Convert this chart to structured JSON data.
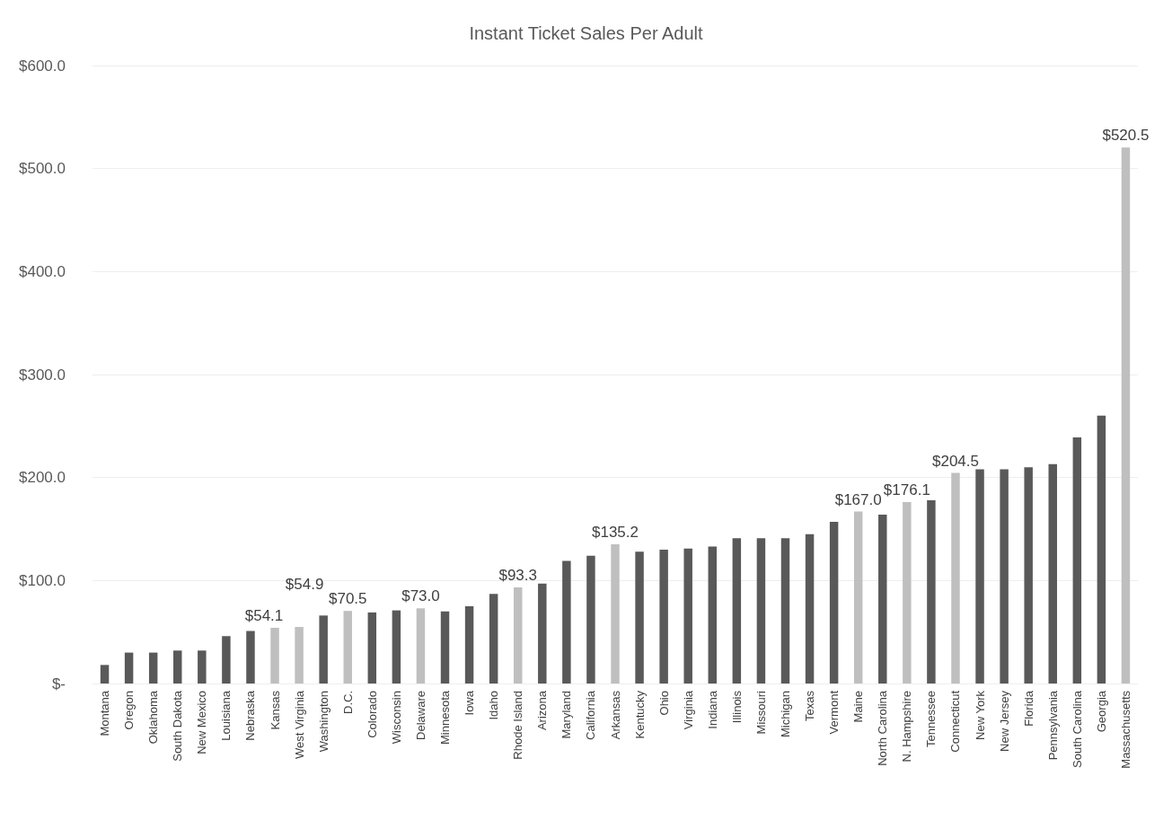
{
  "chart_data": {
    "type": "bar",
    "title": "Instant Ticket Sales Per Adult",
    "categories": [
      "Montana",
      "Oregon",
      "Oklahoma",
      "South Dakota",
      "New Mexico",
      "Louisiana",
      "Nebraska",
      "Kansas",
      "West Virginia",
      "Washington",
      "D.C.",
      "Colorado",
      "Wisconsin",
      "Delaware",
      "Minnesota",
      "Iowa",
      "Idaho",
      "Rhode Island",
      "Arizona",
      "Maryland",
      "California",
      "Arkansas",
      "Kentucky",
      "Ohio",
      "Virginia",
      "Indiana",
      "Illinois",
      "Missouri",
      "Michigan",
      "Texas",
      "Vermont",
      "Maine",
      "North Carolina",
      "N. Hampshire",
      "Tennessee",
      "Connecticut",
      "New York",
      "New Jersey",
      "Florida",
      "Pennsylvania",
      "South Carolina",
      "Georgia",
      "Massachusetts"
    ],
    "values": [
      18,
      30,
      30,
      32,
      32,
      46,
      51,
      54.1,
      54.9,
      66,
      70.5,
      69,
      71,
      73.0,
      70,
      75,
      87,
      93.3,
      97,
      119,
      124,
      135.2,
      128,
      130,
      131,
      133,
      141,
      141,
      141,
      145,
      157,
      167.0,
      164,
      176.1,
      178,
      204.5,
      208,
      208,
      210,
      213,
      239,
      260,
      520.5
    ],
    "colors": [
      "#595959",
      "#595959",
      "#595959",
      "#595959",
      "#595959",
      "#595959",
      "#595959",
      "#bfbfbf",
      "#bfbfbf",
      "#595959",
      "#bfbfbf",
      "#595959",
      "#595959",
      "#bfbfbf",
      "#595959",
      "#595959",
      "#595959",
      "#bfbfbf",
      "#595959",
      "#595959",
      "#595959",
      "#bfbfbf",
      "#595959",
      "#595959",
      "#595959",
      "#595959",
      "#595959",
      "#595959",
      "#595959",
      "#595959",
      "#595959",
      "#bfbfbf",
      "#595959",
      "#bfbfbf",
      "#595959",
      "#bfbfbf",
      "#595959",
      "#595959",
      "#595959",
      "#595959",
      "#595959",
      "#595959",
      "#bfbfbf"
    ],
    "value_labels": [
      null,
      null,
      null,
      null,
      null,
      null,
      null,
      "$54.1",
      "$54.9",
      null,
      "$70.5",
      null,
      null,
      "$73.0",
      null,
      null,
      null,
      "$93.3",
      null,
      null,
      null,
      "$135.2",
      null,
      null,
      null,
      null,
      null,
      null,
      null,
      null,
      null,
      "$167.0",
      null,
      "$176.1",
      null,
      "$204.5",
      null,
      null,
      null,
      null,
      null,
      null,
      "$520.5"
    ],
    "ylim": [
      0,
      600
    ],
    "yticks": [
      {
        "value": 0,
        "label": "$-"
      },
      {
        "value": 100,
        "label": "$100.0"
      },
      {
        "value": 200,
        "label": "$200.0"
      },
      {
        "value": 300,
        "label": "$300.0"
      },
      {
        "value": 400,
        "label": "$400.0"
      },
      {
        "value": 500,
        "label": "$500.0"
      },
      {
        "value": 600,
        "label": "$600.0"
      }
    ],
    "grid": true
  }
}
